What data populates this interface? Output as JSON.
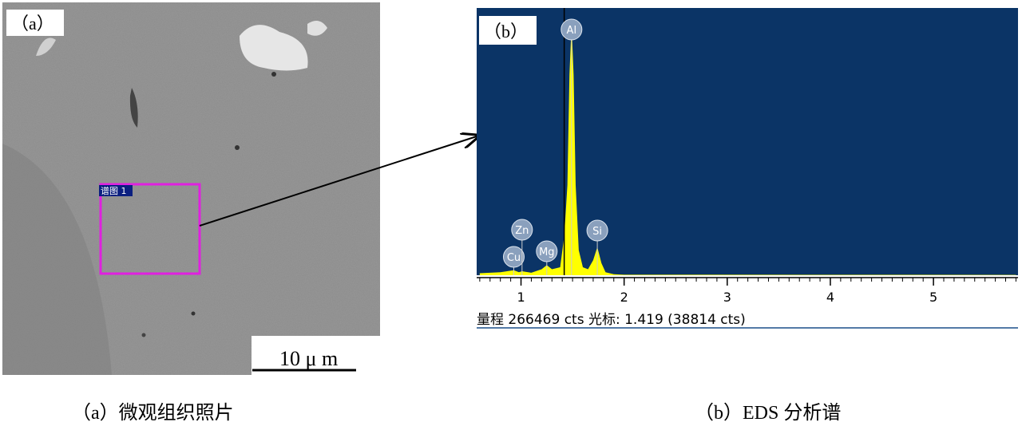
{
  "panel_a": {
    "label": "（a）",
    "region_label": "谱图 1",
    "scale_bar": "10 μ m",
    "caption": "（a）微观组织照片"
  },
  "chart_data": {
    "type": "area",
    "label": "（b）",
    "x": [
      0.6,
      0.8,
      0.93,
      0.98,
      1.01,
      1.1,
      1.2,
      1.25,
      1.3,
      1.38,
      1.42,
      1.45,
      1.47,
      1.49,
      1.51,
      1.53,
      1.56,
      1.6,
      1.65,
      1.7,
      1.74,
      1.78,
      1.82,
      1.9,
      2.0,
      5.8
    ],
    "values": [
      2000,
      3000,
      5000,
      3000,
      4000,
      2500,
      6000,
      10000,
      6000,
      8000,
      40000,
      90000,
      200000,
      250000,
      200000,
      90000,
      25000,
      8000,
      6000,
      15000,
      28000,
      12000,
      3000,
      1000,
      500,
      300
    ],
    "color": "#ffff00",
    "background": "#0b3466",
    "xlim": [
      0.57,
      5.82
    ],
    "ylim": [
      0,
      266469
    ],
    "xticks": [
      1,
      2,
      3,
      4,
      5
    ],
    "peaks": [
      {
        "label": "Cu",
        "x": 0.93
      },
      {
        "label": "Zn",
        "x": 1.01
      },
      {
        "label": "Mg",
        "x": 1.25
      },
      {
        "label": "Al",
        "x": 1.49
      },
      {
        "label": "Si",
        "x": 1.74
      }
    ],
    "cursor": 1.419,
    "status": "量程 266469 cts 光标: 1.419  (38814 cts)",
    "caption": "（b）EDS 分析谱"
  }
}
